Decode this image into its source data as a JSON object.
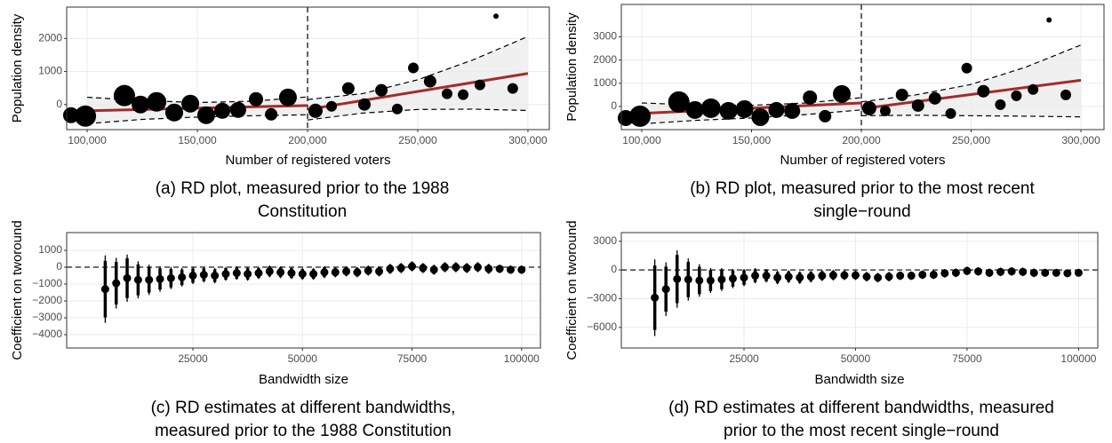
{
  "chart_data": [
    {
      "type": "rd_scatter",
      "caption": "(a) RD plot, measured prior to the 1988 Constitution",
      "x_label": "Number of registered voters",
      "y_label": "Population density",
      "x": [
        92700,
        99200,
        116900,
        124200,
        131500,
        139500,
        146800,
        154000,
        161300,
        168500,
        176600,
        183500,
        191100,
        203600,
        210900,
        218500,
        225800,
        233500,
        240700,
        248000,
        255600,
        263300,
        270600,
        278200,
        285500,
        293100
      ],
      "values": [
        -324,
        -351,
        270,
        0,
        81,
        -243,
        27,
        -324,
        -189,
        -162,
        162,
        -297,
        216,
        -189,
        -54,
        486,
        0,
        432,
        -135,
        1108,
        703,
        324,
        297,
        595,
        2676,
        486
      ],
      "sizes": [
        9,
        12,
        12,
        10,
        11,
        10,
        10,
        10,
        9,
        9,
        8,
        7,
        10,
        8,
        6,
        7,
        7,
        7,
        6,
        6,
        7,
        6,
        6,
        6,
        3,
        6
      ],
      "cutoff": 200000,
      "fit": [
        {
          "x": [
            100000,
            200000
          ],
          "values": [
            -190,
            -30
          ]
        },
        {
          "x": [
            200000,
            300000
          ],
          "values": [
            -150,
            940
          ]
        }
      ],
      "ci": [
        {
          "x": [
            100000,
            125000,
            150000,
            175000,
            200000
          ],
          "upper": [
            220,
            120,
            60,
            100,
            230
          ],
          "lower": [
            -580,
            -450,
            -380,
            -340,
            -310
          ]
        },
        {
          "x": [
            200000,
            225000,
            250000,
            275000,
            300000
          ],
          "upper": [
            150,
            330,
            750,
            1350,
            2060
          ],
          "lower": [
            -470,
            -260,
            -150,
            -140,
            -180
          ]
        }
      ],
      "xlim": [
        90700,
        309700
      ],
      "ylim": [
        -760,
        2950
      ],
      "xticks": [
        {
          "value": 100000,
          "label": "100,000"
        },
        {
          "value": 150000,
          "label": "150,000"
        },
        {
          "value": 200000,
          "label": "200,000"
        },
        {
          "value": 250000,
          "label": "250,000"
        },
        {
          "value": 300000,
          "label": "300,000"
        }
      ],
      "yticks": [
        0,
        1000,
        2000
      ],
      "grid": true,
      "point_color": "#000000",
      "line_color": "#a52a2a",
      "ci_fill": "#ececec"
    },
    {
      "type": "rd_scatter",
      "caption": "(b) RD plot, measured prior to the most recent single−round",
      "x_label": "Number of registered voters",
      "y_label": "Population density",
      "x": [
        92700,
        99200,
        116900,
        124200,
        131500,
        139500,
        146800,
        154000,
        161300,
        168500,
        176600,
        183500,
        191100,
        203600,
        210900,
        218500,
        225800,
        233500,
        240700,
        248000,
        255600,
        263300,
        270600,
        278200,
        285500,
        293100
      ],
      "values": [
        -500,
        -423,
        192,
        -154,
        -77,
        -192,
        -115,
        -462,
        -154,
        -192,
        385,
        -423,
        538,
        -77,
        -192,
        500,
        38,
        346,
        -308,
        1654,
        654,
        77,
        462,
        731,
        3730,
        500
      ],
      "sizes": [
        9,
        12,
        12,
        10,
        11,
        10,
        10,
        10,
        9,
        9,
        8,
        7,
        10,
        8,
        6,
        7,
        7,
        7,
        6,
        6,
        7,
        6,
        6,
        6,
        3,
        6
      ],
      "cutoff": 200000,
      "fit": [
        {
          "x": [
            100000,
            200000
          ],
          "values": [
            -300,
            150
          ]
        },
        {
          "x": [
            200000,
            300000
          ],
          "values": [
            -100,
            1130
          ]
        }
      ],
      "ci": [
        {
          "x": [
            100000,
            125000,
            150000,
            175000,
            200000
          ],
          "upper": [
            150,
            60,
            50,
            150,
            380
          ],
          "lower": [
            -750,
            -600,
            -500,
            -350,
            -150
          ]
        },
        {
          "x": [
            200000,
            225000,
            250000,
            275000,
            300000
          ],
          "upper": [
            200,
            500,
            950,
            1700,
            2650
          ],
          "lower": [
            -400,
            -380,
            -400,
            -420,
            -450
          ]
        }
      ],
      "xlim": [
        90700,
        310500
      ],
      "ylim": [
        -1000,
        4400
      ],
      "xticks": [
        {
          "value": 100000,
          "label": "100,000"
        },
        {
          "value": 150000,
          "label": "150,000"
        },
        {
          "value": 200000,
          "label": "200,000"
        },
        {
          "value": 250000,
          "label": "250,000"
        },
        {
          "value": 300000,
          "label": "300,000"
        }
      ],
      "yticks": [
        0,
        1000,
        2000,
        3000
      ],
      "grid": true,
      "point_color": "#000000",
      "line_color": "#a52a2a",
      "ci_fill": "#ececec"
    },
    {
      "type": "errorbar",
      "caption": "(c) RD estimates at different bandwidths, measured prior to the 1988 Constitution",
      "x_label": "Bandwidth size",
      "y_label": "Coefficient on tworound",
      "x": [
        5000,
        7500,
        10000,
        12500,
        15000,
        17500,
        20000,
        22500,
        25000,
        27500,
        30000,
        32500,
        35000,
        37500,
        40000,
        42500,
        45000,
        47500,
        50000,
        52500,
        55000,
        57500,
        60000,
        62500,
        65000,
        67500,
        70000,
        72500,
        75000,
        77500,
        80000,
        82500,
        85000,
        87500,
        90000,
        92500,
        95000,
        97500,
        100000
      ],
      "values": [
        -1300,
        -950,
        -650,
        -750,
        -750,
        -700,
        -650,
        -600,
        -500,
        -450,
        -500,
        -400,
        -350,
        -400,
        -350,
        -250,
        -300,
        -350,
        -400,
        -400,
        -300,
        -300,
        -250,
        -300,
        -200,
        -250,
        -100,
        -50,
        50,
        -50,
        -150,
        0,
        0,
        -50,
        0,
        -100,
        -100,
        -150,
        -150
      ],
      "errors": [
        2000,
        1500,
        1400,
        1100,
        900,
        750,
        650,
        550,
        500,
        450,
        450,
        400,
        400,
        400,
        350,
        350,
        350,
        350,
        350,
        350,
        350,
        300,
        300,
        300,
        300,
        300,
        300,
        300,
        300,
        300,
        300,
        300,
        300,
        300,
        300,
        300,
        250,
        250,
        250
      ],
      "errors_inner": [
        1680,
        1260,
        1180,
        920,
        760,
        630,
        550,
        460,
        420,
        380,
        380,
        340,
        340,
        340,
        290,
        290,
        290,
        290,
        290,
        290,
        290,
        250,
        250,
        250,
        250,
        250,
        250,
        250,
        250,
        250,
        250,
        250,
        250,
        250,
        250,
        250,
        210,
        210,
        210
      ],
      "reference_line": 0,
      "xlim": [
        -3800,
        104300
      ],
      "ylim": [
        -4790,
        2050
      ],
      "xticks": [
        25000,
        50000,
        75000,
        100000
      ],
      "yticks": [
        {
          "value": -4000,
          "label": "−4000"
        },
        {
          "value": -3000,
          "label": "−3000"
        },
        {
          "value": -2000,
          "label": "−2000"
        },
        {
          "value": -1000,
          "label": "−1000"
        },
        0,
        1000
      ],
      "grid": true,
      "point_color": "#000000"
    },
    {
      "type": "errorbar",
      "caption": "(d) RD estimates at different bandwidths, measured prior to the most recent single−round",
      "x_label": "Bandwidth size",
      "y_label": "Coefficient on tworound",
      "x": [
        5000,
        7500,
        10000,
        12500,
        15000,
        17500,
        20000,
        22500,
        25000,
        27500,
        30000,
        32500,
        35000,
        37500,
        40000,
        42500,
        45000,
        47500,
        50000,
        52500,
        55000,
        57500,
        60000,
        62500,
        65000,
        67500,
        70000,
        72500,
        75000,
        77500,
        80000,
        82500,
        85000,
        87500,
        90000,
        92500,
        95000,
        97500,
        100000
      ],
      "values": [
        -2900,
        -2000,
        -950,
        -1000,
        -1100,
        -1100,
        -1000,
        -900,
        -800,
        -600,
        -600,
        -800,
        -700,
        -800,
        -700,
        -600,
        -550,
        -550,
        -550,
        -700,
        -800,
        -700,
        -600,
        -600,
        -500,
        -500,
        -350,
        -300,
        -100,
        -150,
        -300,
        -200,
        -150,
        -200,
        -300,
        -300,
        -300,
        -350,
        -300
      ],
      "errors": [
        4000,
        2800,
        3000,
        2200,
        1700,
        1300,
        1200,
        1000,
        900,
        800,
        700,
        700,
        650,
        650,
        600,
        550,
        550,
        500,
        500,
        500,
        500,
        500,
        450,
        450,
        450,
        450,
        450,
        450,
        450,
        450,
        450,
        450,
        450,
        450,
        450,
        400,
        400,
        400,
        400
      ],
      "errors_inner": [
        3360,
        2350,
        2520,
        1850,
        1430,
        1090,
        1010,
        840,
        760,
        670,
        590,
        590,
        550,
        550,
        500,
        460,
        460,
        420,
        420,
        420,
        420,
        420,
        380,
        380,
        380,
        380,
        380,
        380,
        380,
        380,
        380,
        380,
        380,
        380,
        380,
        340,
        340,
        340,
        340
      ],
      "reference_line": 0,
      "xlim": [
        -2500,
        104300
      ],
      "ylim": [
        -8150,
        3900
      ],
      "xticks": [
        25000,
        50000,
        75000,
        100000
      ],
      "yticks": [
        {
          "value": -6000,
          "label": "−6000"
        },
        {
          "value": -3000,
          "label": "−3000"
        },
        0,
        3000
      ],
      "grid": true,
      "point_color": "#000000"
    }
  ]
}
